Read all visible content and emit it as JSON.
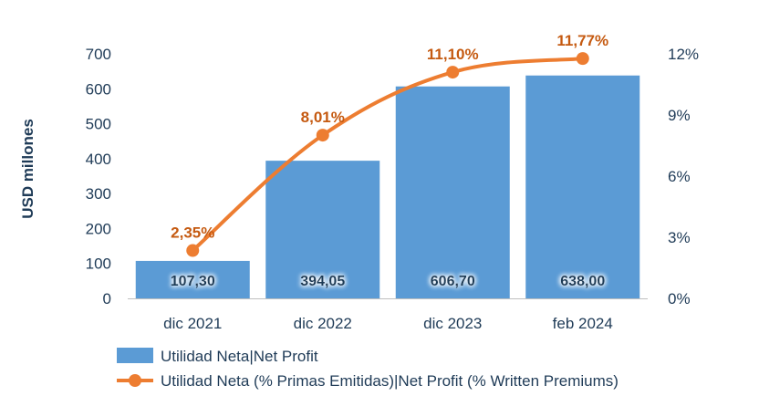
{
  "chart_data": {
    "type": "bar",
    "categories": [
      "dic 2021",
      "dic 2022",
      "dic 2023",
      "feb 2024"
    ],
    "ylabel": "USD millones",
    "ylim": [
      0,
      700
    ],
    "y_ticks": [
      "0",
      "100",
      "200",
      "300",
      "400",
      "500",
      "600",
      "700"
    ],
    "y2lim": [
      0,
      12
    ],
    "y2_ticks": [
      "0%",
      "3%",
      "6%",
      "9%",
      "12%"
    ],
    "series": [
      {
        "name": "Utilidad Neta|Net Profit",
        "kind": "bar",
        "values": [
          107.3,
          394.05,
          606.7,
          638.0
        ],
        "labels": [
          "107,30",
          "394,05",
          "606,70",
          "638,00"
        ],
        "color": "#5b9bd5"
      },
      {
        "name": "Utilidad Neta (% Primas Emitidas)|Net Profit (% Written Premiums)",
        "kind": "line",
        "axis": "right",
        "values": [
          2.35,
          8.01,
          11.1,
          11.77
        ],
        "labels": [
          "2,35%",
          "8,01%",
          "11,10%",
          "11,77%"
        ],
        "color": "#ed7d31"
      }
    ],
    "legend": "bottom",
    "grid": false
  }
}
